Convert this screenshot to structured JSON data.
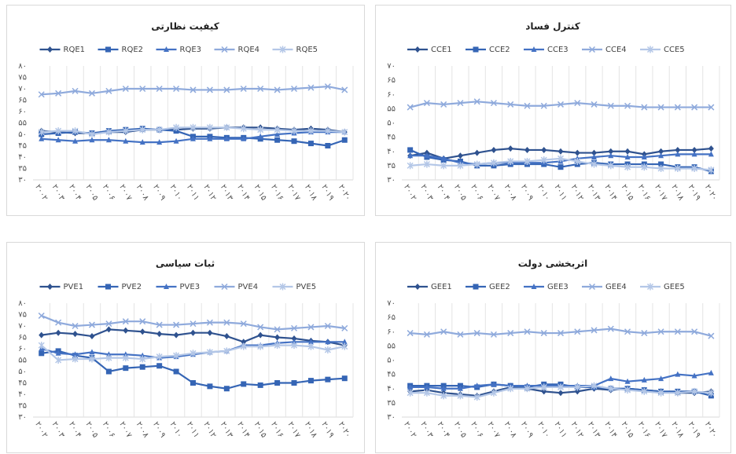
{
  "chart_data": [
    {
      "type": "line",
      "title": "کیفیت نظارتی",
      "marker_style": true,
      "categories": [
        "۲۰۰۲",
        "۲۰۰۳",
        "۲۰۰۴",
        "۲۰۰۵",
        "۲۰۰۶",
        "۲۰۰۷",
        "۲۰۰۸",
        "۲۰۰۹",
        "۲۰۱۰",
        "۲۰۱۱",
        "۲۰۱۲",
        "۲۰۱۳",
        "۲۰۱۴",
        "۲۰۱۵",
        "۲۰۱۶",
        "۲۰۱۷",
        "۲۰۱۸",
        "۲۰۱۹",
        "۲۰۲۰"
      ],
      "ylim": [
        30,
        80
      ],
      "yticks": [
        {
          "value": 30,
          "label": "۳۰"
        },
        {
          "value": 35,
          "label": "۳۵"
        },
        {
          "value": 40,
          "label": "۴۰"
        },
        {
          "value": 45,
          "label": "۴۵"
        },
        {
          "value": 50,
          "label": "۵۰"
        },
        {
          "value": 55,
          "label": "۵۵"
        },
        {
          "value": 60,
          "label": "۶۰"
        },
        {
          "value": 65,
          "label": "۶۵"
        },
        {
          "value": 70,
          "label": "۷۰"
        },
        {
          "value": 75,
          "label": "۷۵"
        },
        {
          "value": 80,
          "label": "۸۰"
        }
      ],
      "grid": "x",
      "series": [
        {
          "name": "RQE1",
          "color": "#2f528f",
          "marker": "diamond",
          "values": [
            51.5,
            51,
            50.5,
            50.5,
            51,
            51,
            52,
            52,
            52,
            52.5,
            52.5,
            53,
            53,
            53,
            52.5,
            52,
            52.5,
            52,
            51
          ]
        },
        {
          "name": "RQE2",
          "color": "#3565b5",
          "marker": "square",
          "values": [
            50,
            50.5,
            51,
            50.5,
            51.5,
            52,
            52.5,
            52,
            51.5,
            49,
            49,
            48.5,
            48.5,
            48,
            47.5,
            47,
            46,
            45,
            47.5
          ]
        },
        {
          "name": "RQE3",
          "color": "#4472c4",
          "marker": "triangle",
          "values": [
            48,
            47.5,
            47,
            47.5,
            47.5,
            47,
            46.5,
            46.5,
            47,
            48,
            48,
            48,
            48,
            49,
            50,
            50.5,
            51,
            51,
            51
          ]
        },
        {
          "name": "RQE4",
          "color": "#8faadc",
          "marker": "x",
          "values": [
            67.5,
            68,
            69,
            68,
            69,
            70,
            70,
            70,
            70,
            69.5,
            69.5,
            69.5,
            70,
            70,
            69.5,
            70,
            70.5,
            71,
            69.5
          ]
        },
        {
          "name": "RQE5",
          "color": "#b4c7e7",
          "marker": "star",
          "values": [
            51,
            51.5,
            51.5,
            50,
            51,
            51.5,
            52,
            52,
            53,
            53,
            53,
            53,
            52.5,
            52,
            52,
            51.5,
            51.5,
            51.5,
            51
          ]
        }
      ]
    },
    {
      "type": "line",
      "title": "کنترل فساد",
      "marker_style": true,
      "categories": [
        "۲۰۰۲",
        "۲۰۰۳",
        "۲۰۰۴",
        "۲۰۰۵",
        "۲۰۰۶",
        "۲۰۰۷",
        "۲۰۰۸",
        "۲۰۰۹",
        "۲۰۱۰",
        "۲۰۱۱",
        "۲۰۱۲",
        "۲۰۱۳",
        "۲۰۱۴",
        "۲۰۱۵",
        "۲۰۱۶",
        "۲۰۱۷",
        "۲۰۱۸",
        "۲۰۱۹",
        "۲۰۲۰"
      ],
      "ylim": [
        30,
        70
      ],
      "yticks": [
        {
          "value": 30,
          "label": "۳۰"
        },
        {
          "value": 35,
          "label": "۳۵"
        },
        {
          "value": 40,
          "label": "۴۰"
        },
        {
          "value": 45,
          "label": "۴۵"
        },
        {
          "value": 50,
          "label": "۵۰"
        },
        {
          "value": 55,
          "label": "۵۵"
        },
        {
          "value": 60,
          "label": "۶۰"
        },
        {
          "value": 65,
          "label": "۶۵"
        },
        {
          "value": 70,
          "label": "۷۰"
        }
      ],
      "grid": "x",
      "series": [
        {
          "name": "CCE1",
          "color": "#2f528f",
          "marker": "diamond",
          "values": [
            38.5,
            39.5,
            37.5,
            38.5,
            39.5,
            40.5,
            41,
            40.5,
            40.5,
            40,
            39.5,
            39.5,
            40,
            40,
            39,
            40,
            40.5,
            40.5,
            41
          ]
        },
        {
          "name": "CCE2",
          "color": "#3565b5",
          "marker": "square",
          "values": [
            40.5,
            38,
            37,
            36.5,
            35,
            35,
            35.5,
            35.5,
            35.5,
            34.5,
            35.5,
            36,
            35.5,
            35.5,
            35.5,
            35.5,
            34.5,
            34.5,
            33
          ]
        },
        {
          "name": "CCE3",
          "color": "#4472c4",
          "marker": "triangle",
          "values": [
            38.5,
            38.5,
            37.5,
            36,
            35.5,
            36,
            36,
            36,
            36,
            36.5,
            37.5,
            38,
            38.5,
            38,
            38,
            38.5,
            39,
            39,
            39
          ]
        },
        {
          "name": "CCE4",
          "color": "#8faadc",
          "marker": "x",
          "values": [
            55.5,
            57,
            56.5,
            57,
            57.5,
            57,
            56.5,
            56,
            56,
            56.5,
            57,
            56.5,
            56,
            56,
            55.5,
            55.5,
            55.5,
            55.5,
            55.5
          ]
        },
        {
          "name": "CCE5",
          "color": "#b4c7e7",
          "marker": "star",
          "values": [
            35,
            35.5,
            35,
            35,
            35.5,
            36,
            36.5,
            36.5,
            37,
            37.5,
            36.5,
            35.5,
            35,
            34.5,
            34.5,
            34,
            34,
            34,
            33.5
          ]
        }
      ]
    },
    {
      "type": "line",
      "title": "ثبات سیاسی",
      "marker_style": true,
      "categories": [
        "۲۰۰۲",
        "۲۰۰۳",
        "۲۰۰۴",
        "۲۰۰۵",
        "۲۰۰۶",
        "۲۰۰۷",
        "۲۰۰۸",
        "۲۰۰۹",
        "۲۰۱۰",
        "۲۰۱۱",
        "۲۰۱۲",
        "۲۰۱۳",
        "۲۰۱۴",
        "۲۰۱۵",
        "۲۰۱۶",
        "۲۰۱۷",
        "۲۰۱۸",
        "۲۰۱۹",
        "۲۰۲۰"
      ],
      "ylim": [
        30,
        80
      ],
      "yticks": [
        {
          "value": 30,
          "label": "۳۰"
        },
        {
          "value": 35,
          "label": "۳۵"
        },
        {
          "value": 40,
          "label": "۴۰"
        },
        {
          "value": 45,
          "label": "۴۵"
        },
        {
          "value": 50,
          "label": "۵۰"
        },
        {
          "value": 55,
          "label": "۵۵"
        },
        {
          "value": 60,
          "label": "۶۰"
        },
        {
          "value": 65,
          "label": "۶۵"
        },
        {
          "value": 70,
          "label": "۷۰"
        },
        {
          "value": 75,
          "label": "۷۵"
        },
        {
          "value": 80,
          "label": "۸۰"
        }
      ],
      "grid": "x",
      "series": [
        {
          "name": "PVE1",
          "color": "#2f528f",
          "marker": "diamond",
          "values": [
            66,
            67,
            66.5,
            65.5,
            68.5,
            68,
            67.5,
            66.5,
            66,
            67,
            67,
            65.5,
            63,
            66,
            65,
            64.5,
            63.5,
            63,
            61.5
          ]
        },
        {
          "name": "PVE2",
          "color": "#3565b5",
          "marker": "square",
          "values": [
            58,
            59,
            57,
            56,
            50,
            51.5,
            52,
            52.5,
            50,
            45,
            43.5,
            42.5,
            44.5,
            44,
            45,
            45,
            46,
            46.5,
            47
          ]
        },
        {
          "name": "PVE3",
          "color": "#4472c4",
          "marker": "triangle",
          "values": [
            60,
            58,
            57.5,
            58.5,
            57.5,
            57.5,
            57,
            56,
            56.5,
            57.5,
            58.5,
            59,
            61.5,
            61.5,
            62.5,
            63,
            63,
            63,
            63
          ]
        },
        {
          "name": "PVE4",
          "color": "#8faadc",
          "marker": "x",
          "values": [
            74.5,
            71.5,
            70,
            70.5,
            71,
            72,
            72,
            70.5,
            70.5,
            71,
            71.5,
            71.5,
            71,
            69.5,
            68.5,
            69,
            69.5,
            70,
            69
          ]
        },
        {
          "name": "PVE5",
          "color": "#b4c7e7",
          "marker": "star",
          "values": [
            61.5,
            55,
            55.5,
            55.5,
            56,
            56,
            55.5,
            56.5,
            57,
            58,
            58.5,
            59,
            61,
            61,
            61.5,
            61.5,
            61,
            59.5,
            61
          ]
        }
      ]
    },
    {
      "type": "line",
      "title": "اثربخشی دولت",
      "marker_style": true,
      "categories": [
        "۲۰۰۲",
        "۲۰۰۳",
        "۲۰۰۴",
        "۲۰۰۵",
        "۲۰۰۶",
        "۲۰۰۷",
        "۲۰۰۸",
        "۲۰۰۹",
        "۲۰۱۰",
        "۲۰۱۱",
        "۲۰۱۲",
        "۲۰۱۳",
        "۲۰۱۴",
        "۲۰۱۵",
        "۲۰۱۶",
        "۲۰۱۷",
        "۲۰۱۸",
        "۲۰۱۹",
        "۲۰۲۰"
      ],
      "ylim": [
        30,
        70
      ],
      "yticks": [
        {
          "value": 30,
          "label": "۳۰"
        },
        {
          "value": 35,
          "label": "۳۵"
        },
        {
          "value": 40,
          "label": "۴۰"
        },
        {
          "value": 45,
          "label": "۴۵"
        },
        {
          "value": 50,
          "label": "۵۰"
        },
        {
          "value": 55,
          "label": "۵۵"
        },
        {
          "value": 60,
          "label": "۶۰"
        },
        {
          "value": 65,
          "label": "۶۵"
        },
        {
          "value": 70,
          "label": "۷۰"
        }
      ],
      "grid": "x",
      "series": [
        {
          "name": "GEE1",
          "color": "#2f528f",
          "marker": "diamond",
          "values": [
            39,
            39.5,
            38.5,
            38,
            37.5,
            39,
            40.5,
            40,
            39,
            38.5,
            39,
            40,
            39.5,
            40,
            39.5,
            39,
            38.5,
            38.5,
            39
          ]
        },
        {
          "name": "GEE2",
          "color": "#3565b5",
          "marker": "square",
          "values": [
            41,
            41,
            41,
            41,
            40.5,
            41.5,
            41,
            40.5,
            41.5,
            41.5,
            40.5,
            40.5,
            40,
            40,
            39.5,
            39,
            39,
            39,
            37.5
          ]
        },
        {
          "name": "GEE3",
          "color": "#4472c4",
          "marker": "triangle",
          "values": [
            40.5,
            40.5,
            40,
            40,
            41,
            41.5,
            41,
            41,
            41,
            41,
            41,
            41,
            43.5,
            42.5,
            43,
            43.5,
            45,
            44.5,
            45.5
          ]
        },
        {
          "name": "GEE4",
          "color": "#8faadc",
          "marker": "x",
          "values": [
            59.5,
            59,
            60,
            59,
            59.5,
            59,
            59.5,
            60,
            59.5,
            59.5,
            60,
            60.5,
            61,
            60,
            59.5,
            60,
            60,
            60,
            58.5
          ]
        },
        {
          "name": "GEE5",
          "color": "#b4c7e7",
          "marker": "star",
          "values": [
            38.5,
            38.5,
            37.5,
            37.5,
            37,
            38.5,
            40,
            40,
            40.5,
            40.5,
            40.5,
            41,
            40,
            39.5,
            39,
            38.5,
            38.5,
            39,
            38.5
          ]
        }
      ]
    }
  ]
}
